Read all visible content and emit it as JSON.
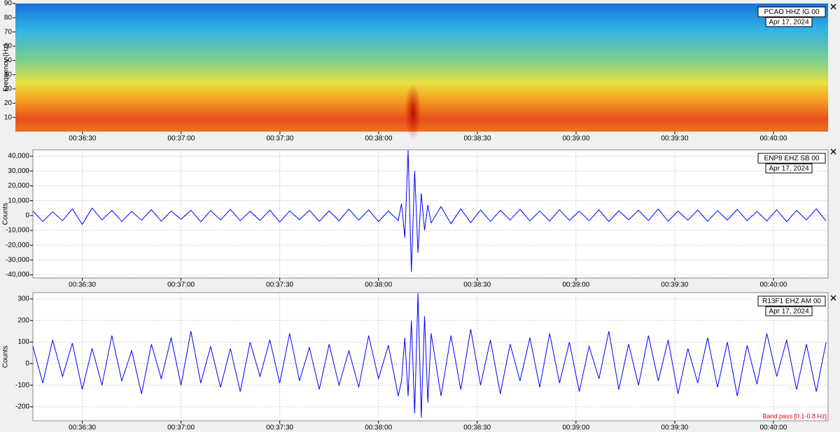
{
  "chart_data": [
    {
      "type": "spectrogram",
      "title": "PCAO HHZ IG 00",
      "subtitle": "Apr 17, 2024",
      "ylabel": "Frequency (Hz)",
      "xlim": [
        2169.6,
        2416.6
      ],
      "ylim": [
        0,
        90
      ],
      "xticks": [
        {
          "value": 2190,
          "label": "00:36:30"
        },
        {
          "value": 2220,
          "label": "00:37:00"
        },
        {
          "value": 2250,
          "label": "00:37:30"
        },
        {
          "value": 2280,
          "label": "00:38:00"
        },
        {
          "value": 2310,
          "label": "00:38:30"
        },
        {
          "value": 2340,
          "label": "00:39:00"
        },
        {
          "value": 2370,
          "label": "00:39:30"
        },
        {
          "value": 2400,
          "label": "00:40:00"
        }
      ],
      "yticks": [
        10,
        20,
        30,
        40,
        50,
        60,
        70,
        80,
        90
      ],
      "grid": false
    },
    {
      "type": "line",
      "title": "ENP8 EHZ SB 00",
      "subtitle": "Apr 17, 2024",
      "ylabel": "Counts",
      "color": "#0000ff",
      "xlim": [
        2175,
        2416.6
      ],
      "ylim": [
        -42100,
        44300
      ],
      "xticks": [
        {
          "value": 2190,
          "label": "00:36:30"
        },
        {
          "value": 2220,
          "label": "00:37:00"
        },
        {
          "value": 2250,
          "label": "00:37:30"
        },
        {
          "value": 2280,
          "label": "00:38:00"
        },
        {
          "value": 2310,
          "label": "00:38:30"
        },
        {
          "value": 2340,
          "label": "00:39:00"
        },
        {
          "value": 2370,
          "label": "00:39:30"
        },
        {
          "value": 2400,
          "label": "00:40:00"
        }
      ],
      "yticks": [
        {
          "value": -40000,
          "label": "-40,000"
        },
        {
          "value": -30000,
          "label": "-30,000"
        },
        {
          "value": -20000,
          "label": "-20,000"
        },
        {
          "value": -10000,
          "label": "-10,000"
        },
        0,
        {
          "value": 10000,
          "label": "10,000"
        },
        {
          "value": 20000,
          "label": "20,000"
        },
        {
          "value": 30000,
          "label": "30,000"
        },
        {
          "value": 40000,
          "label": "40,000"
        }
      ],
      "grid": true,
      "x": [
        2175,
        2178,
        2181,
        2184,
        2187,
        2190,
        2193,
        2196,
        2199,
        2202,
        2205,
        2208,
        2211,
        2214,
        2217,
        2220,
        2223,
        2226,
        2229,
        2232,
        2235,
        2238,
        2241,
        2244,
        2247,
        2250,
        2253,
        2256,
        2259,
        2262,
        2265,
        2268,
        2271,
        2274,
        2277,
        2280,
        2283,
        2286,
        2287,
        2288,
        2289,
        2290,
        2291,
        2292,
        2293,
        2294,
        2295,
        2296,
        2299,
        2302,
        2305,
        2308,
        2311,
        2314,
        2317,
        2320,
        2323,
        2326,
        2329,
        2332,
        2335,
        2338,
        2341,
        2344,
        2347,
        2350,
        2353,
        2356,
        2359,
        2362,
        2365,
        2368,
        2371,
        2374,
        2377,
        2380,
        2383,
        2386,
        2389,
        2392,
        2395,
        2398,
        2401,
        2404,
        2407,
        2410,
        2413,
        2416
      ],
      "values": [
        3000,
        -4000,
        2500,
        -3500,
        4500,
        -6000,
        5000,
        -3000,
        3500,
        -4000,
        2800,
        -3200,
        4000,
        -3800,
        3000,
        -2600,
        3600,
        -4200,
        3300,
        -3000,
        4100,
        -3500,
        2900,
        -3300,
        3700,
        -4400,
        3100,
        -2800,
        3500,
        -3900,
        3200,
        -3600,
        4300,
        -3100,
        3800,
        -4100,
        3000,
        -3400,
        8000,
        -15000,
        44000,
        -38000,
        30000,
        -25000,
        15000,
        -10000,
        7000,
        -5000,
        6000,
        -5500,
        4500,
        -4800,
        3800,
        -4000,
        3500,
        -3000,
        4200,
        -3600,
        3100,
        -3700,
        4000,
        -3300,
        2900,
        -3500,
        3800,
        -4100,
        3200,
        -2900,
        3600,
        -3400,
        4400,
        -3800,
        3000,
        -3200,
        3700,
        -3900,
        3300,
        -3100,
        4100,
        -3500,
        2800,
        -3600,
        3900,
        -4200,
        3400,
        -3000,
        4500,
        -3700
      ]
    },
    {
      "type": "line",
      "title": "R13F1 EHZ AM 00",
      "subtitle": "Apr 17, 2024",
      "ylabel": "Counts",
      "color": "#0000ff",
      "annotation": "Band pass [0.1-0.8 Hz]",
      "xlim": [
        2175,
        2416.6
      ],
      "ylim": [
        -265,
        329
      ],
      "xticks": [
        {
          "value": 2190,
          "label": "00:36:30"
        },
        {
          "value": 2220,
          "label": "00:37:00"
        },
        {
          "value": 2250,
          "label": "00:37:30"
        },
        {
          "value": 2280,
          "label": "00:38:00"
        },
        {
          "value": 2310,
          "label": "00:38:30"
        },
        {
          "value": 2340,
          "label": "00:39:00"
        },
        {
          "value": 2370,
          "label": "00:39:30"
        },
        {
          "value": 2400,
          "label": "00:40:00"
        }
      ],
      "yticks": [
        -200,
        -100,
        0,
        100,
        200,
        300
      ],
      "grid": true,
      "x": [
        2175,
        2178,
        2181,
        2184,
        2187,
        2190,
        2193,
        2196,
        2199,
        2202,
        2205,
        2208,
        2211,
        2214,
        2217,
        2220,
        2223,
        2226,
        2229,
        2232,
        2235,
        2238,
        2241,
        2244,
        2247,
        2250,
        2253,
        2256,
        2259,
        2262,
        2265,
        2268,
        2271,
        2274,
        2277,
        2280,
        2283,
        2286,
        2287,
        2288,
        2289,
        2290,
        2291,
        2292,
        2293,
        2294,
        2295,
        2296,
        2299,
        2302,
        2305,
        2308,
        2311,
        2314,
        2317,
        2320,
        2323,
        2326,
        2329,
        2332,
        2335,
        2338,
        2341,
        2344,
        2347,
        2350,
        2353,
        2356,
        2359,
        2362,
        2365,
        2368,
        2371,
        2374,
        2377,
        2380,
        2383,
        2386,
        2389,
        2392,
        2395,
        2398,
        2401,
        2404,
        2407,
        2410,
        2413,
        2416
      ],
      "values": [
        80,
        -90,
        110,
        -60,
        95,
        -120,
        70,
        -100,
        130,
        -80,
        60,
        -140,
        90,
        -70,
        120,
        -100,
        150,
        -90,
        80,
        -110,
        70,
        -130,
        100,
        -60,
        110,
        -90,
        140,
        -80,
        75,
        -120,
        90,
        -100,
        60,
        -110,
        130,
        -70,
        85,
        -150,
        -80,
        120,
        -150,
        200,
        -230,
        325,
        -250,
        220,
        -180,
        140,
        -150,
        130,
        -120,
        160,
        -100,
        110,
        -140,
        90,
        -80,
        120,
        -110,
        140,
        -90,
        100,
        -130,
        80,
        -70,
        150,
        -120,
        90,
        -100,
        130,
        -80,
        110,
        -140,
        70,
        -90,
        120,
        -110,
        100,
        -150,
        85,
        -95,
        140,
        -60,
        110,
        -120,
        90,
        -130,
        100
      ]
    }
  ]
}
